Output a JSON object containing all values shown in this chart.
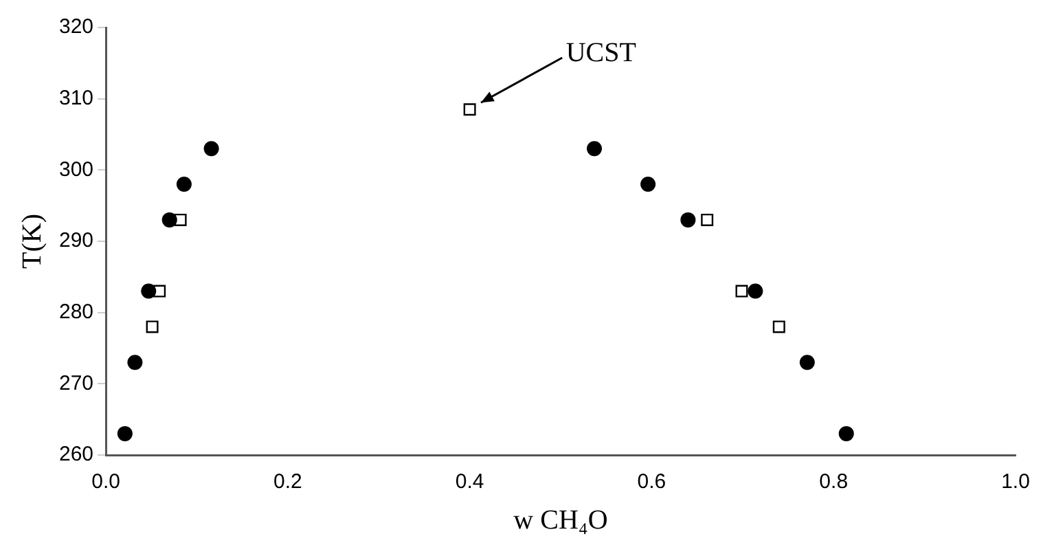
{
  "chart_data": {
    "type": "scatter",
    "xlabel": "w CH₄O",
    "ylabel": "T(K)",
    "xlim": [
      0,
      1
    ],
    "ylim": [
      260,
      320
    ],
    "xticks": [
      {
        "value": 0,
        "label": "0.0"
      },
      0.2,
      0.4,
      0.6,
      0.8,
      {
        "value": 1,
        "label": "1.0"
      }
    ],
    "yticks": [
      260,
      270,
      280,
      290,
      300,
      310,
      320
    ],
    "grid": false,
    "legend": false,
    "series": [
      {
        "color": "#000000",
        "marker": "circle",
        "x": [
          0.021,
          0.032,
          0.047,
          0.07,
          0.086,
          0.116,
          0.537,
          0.596,
          0.64,
          0.714,
          0.771,
          0.814
        ],
        "values": [
          263,
          273,
          283,
          293,
          298,
          303,
          303,
          298,
          293,
          283,
          273,
          263
        ]
      },
      {
        "color": "#000000",
        "marker": "square",
        "x": [
          0.051,
          0.059,
          0.082,
          0.4,
          0.661,
          0.699,
          0.74
        ],
        "values": [
          278,
          283,
          293,
          308.5,
          293,
          283,
          278
        ]
      }
    ],
    "annotations": [
      "UCST"
    ]
  }
}
